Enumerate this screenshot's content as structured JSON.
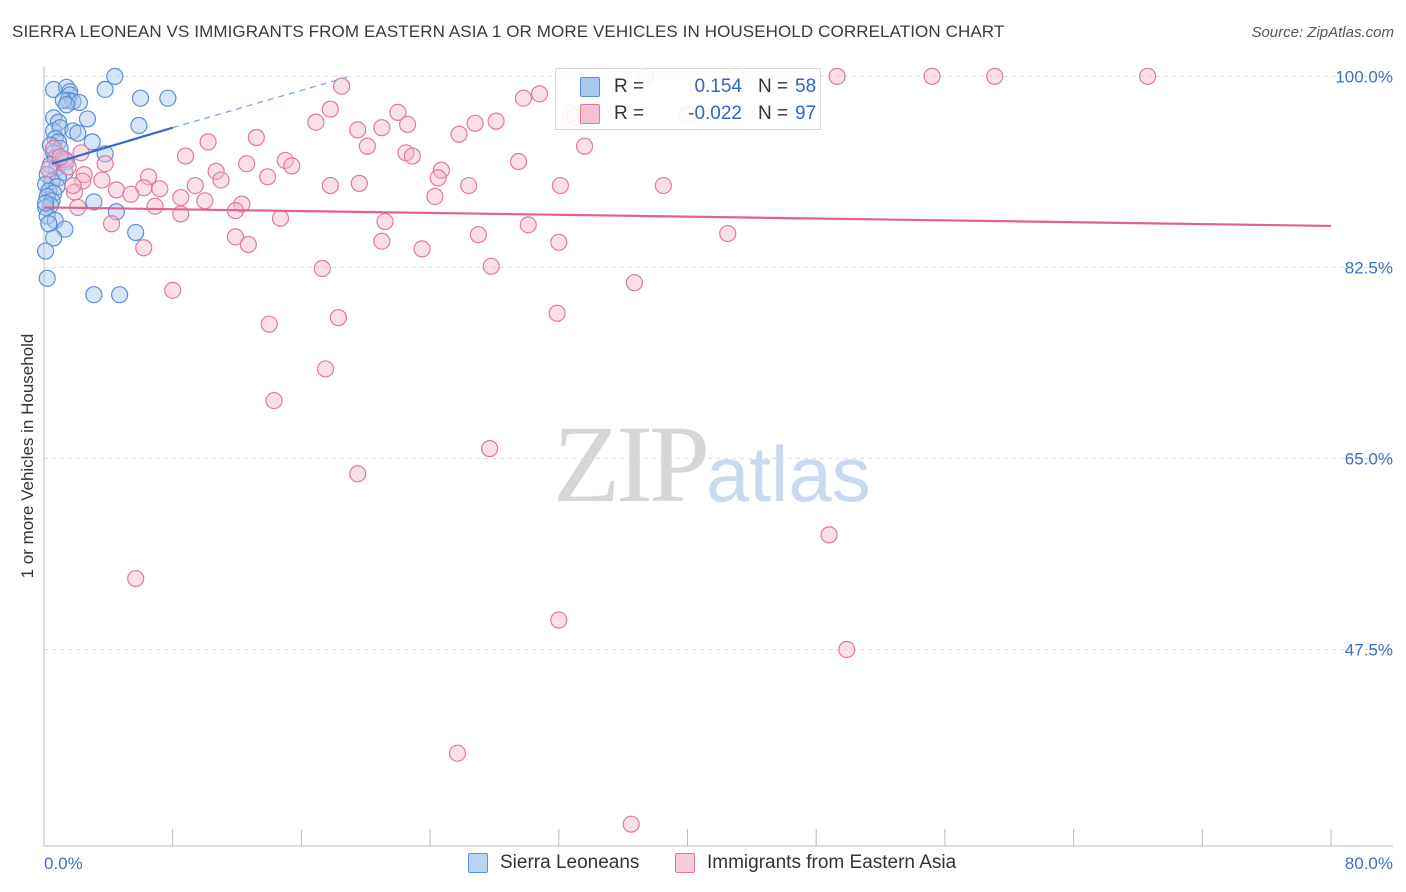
{
  "title": "SIERRA LEONEAN VS IMMIGRANTS FROM EASTERN ASIA 1 OR MORE VEHICLES IN HOUSEHOLD CORRELATION CHART",
  "source": "Source: ZipAtlas.com",
  "watermark": {
    "zip": "ZIP",
    "atlas": "atlas"
  },
  "legend": {
    "r_label": "R =",
    "n_label": "N =",
    "rows": [
      {
        "r": "0.154",
        "n": "58"
      },
      {
        "r": "-0.022",
        "n": "97"
      }
    ]
  },
  "chart_data": {
    "type": "scatter",
    "title": "SIERRA LEONEAN VS IMMIGRANTS FROM EASTERN ASIA 1 OR MORE VEHICLES IN HOUSEHOLD CORRELATION CHART",
    "ylabel": "1 or more Vehicles in Household",
    "xlabel": "",
    "xlim": [
      0,
      80
    ],
    "ylim": [
      29.5,
      101.5
    ],
    "y_ticks": [
      {
        "value": 100,
        "label": "100.0%"
      },
      {
        "value": 82.5,
        "label": "82.5%"
      },
      {
        "value": 65,
        "label": "65.0%"
      },
      {
        "value": 47.5,
        "label": "47.5%"
      }
    ],
    "x_tick_labels": {
      "min": "0.0%",
      "max": "80.0%"
    },
    "x_tick_values": [
      0,
      8,
      16,
      24,
      32,
      40,
      48,
      56,
      64,
      72,
      80
    ],
    "grid": "horizontal dashed",
    "legend_position": "top-center",
    "series": [
      {
        "name": "Sierra Leoneans",
        "color": "#5b8fd6",
        "fill": "#a9c6ee",
        "trend": {
          "x": [
            0.5,
            8.0
          ],
          "y": [
            92.0,
            95.3
          ],
          "dashed_to": [
            19.0,
            100.0
          ]
        },
        "points": [
          [
            4.4,
            100.0
          ],
          [
            0.6,
            98.8
          ],
          [
            1.4,
            99.0
          ],
          [
            1.6,
            98.6
          ],
          [
            3.8,
            98.8
          ],
          [
            1.6,
            98.3
          ],
          [
            1.5,
            97.8
          ],
          [
            1.8,
            97.7
          ],
          [
            7.7,
            98.0
          ],
          [
            1.2,
            97.8
          ],
          [
            6.0,
            98.0
          ],
          [
            2.2,
            97.6
          ],
          [
            1.4,
            97.4
          ],
          [
            0.6,
            96.2
          ],
          [
            0.9,
            95.8
          ],
          [
            2.7,
            96.1
          ],
          [
            5.9,
            95.5
          ],
          [
            0.6,
            95.0
          ],
          [
            1.0,
            95.3
          ],
          [
            1.8,
            95.0
          ],
          [
            2.1,
            94.8
          ],
          [
            0.7,
            94.3
          ],
          [
            0.9,
            94.0
          ],
          [
            3.0,
            94.0
          ],
          [
            0.4,
            93.7
          ],
          [
            1.0,
            93.4
          ],
          [
            0.6,
            93.0
          ],
          [
            3.8,
            92.9
          ],
          [
            0.7,
            92.5
          ],
          [
            1.1,
            92.4
          ],
          [
            1.4,
            92.2
          ],
          [
            0.4,
            91.9
          ],
          [
            0.8,
            91.6
          ],
          [
            1.3,
            91.2
          ],
          [
            0.2,
            91.0
          ],
          [
            0.9,
            90.7
          ],
          [
            0.5,
            90.4
          ],
          [
            0.1,
            90.1
          ],
          [
            0.8,
            89.9
          ],
          [
            0.3,
            89.5
          ],
          [
            0.6,
            89.3
          ],
          [
            0.2,
            89.0
          ],
          [
            0.5,
            88.6
          ],
          [
            3.1,
            88.5
          ],
          [
            0.4,
            88.2
          ],
          [
            0.1,
            88.0
          ],
          [
            4.5,
            87.6
          ],
          [
            0.2,
            87.2
          ],
          [
            0.7,
            86.8
          ],
          [
            0.3,
            86.5
          ],
          [
            1.3,
            86.0
          ],
          [
            5.7,
            85.7
          ],
          [
            0.6,
            85.2
          ],
          [
            0.1,
            84.0
          ],
          [
            0.2,
            81.5
          ],
          [
            3.1,
            80.0
          ],
          [
            4.7,
            80.0
          ],
          [
            0.1,
            88.4
          ]
        ]
      },
      {
        "name": "Immigrants from Eastern Asia",
        "color": "#e07a9c",
        "fill": "#f5b8cb",
        "trend": {
          "x": [
            0.0,
            80.0
          ],
          "y": [
            88.0,
            86.3
          ]
        },
        "points": [
          [
            37.4,
            100.0
          ],
          [
            59.1,
            100.0
          ],
          [
            55.2,
            100.0
          ],
          [
            43.0,
            100.0
          ],
          [
            49.3,
            100.0
          ],
          [
            68.6,
            100.0
          ],
          [
            18.5,
            99.1
          ],
          [
            30.8,
            98.4
          ],
          [
            29.8,
            98.0
          ],
          [
            17.8,
            97.0
          ],
          [
            22.0,
            96.7
          ],
          [
            33.0,
            96.3
          ],
          [
            16.9,
            95.8
          ],
          [
            28.1,
            95.9
          ],
          [
            26.8,
            95.7
          ],
          [
            21.0,
            95.3
          ],
          [
            22.6,
            95.6
          ],
          [
            19.5,
            95.1
          ],
          [
            13.2,
            94.4
          ],
          [
            25.8,
            94.7
          ],
          [
            10.2,
            94.0
          ],
          [
            20.1,
            93.6
          ],
          [
            33.6,
            93.6
          ],
          [
            0.6,
            93.4
          ],
          [
            2.3,
            93.0
          ],
          [
            22.5,
            93.0
          ],
          [
            8.8,
            92.7
          ],
          [
            1.3,
            92.4
          ],
          [
            22.9,
            92.7
          ],
          [
            12.6,
            92.0
          ],
          [
            15.0,
            92.3
          ],
          [
            29.5,
            92.2
          ],
          [
            3.8,
            92.0
          ],
          [
            1.5,
            91.7
          ],
          [
            10.7,
            91.3
          ],
          [
            15.4,
            91.8
          ],
          [
            24.7,
            91.4
          ],
          [
            2.5,
            91.0
          ],
          [
            6.5,
            90.8
          ],
          [
            11.0,
            90.5
          ],
          [
            3.6,
            90.5
          ],
          [
            24.5,
            90.7
          ],
          [
            13.9,
            90.8
          ],
          [
            2.4,
            90.4
          ],
          [
            9.4,
            90.0
          ],
          [
            17.8,
            90.0
          ],
          [
            19.6,
            90.2
          ],
          [
            26.4,
            90.0
          ],
          [
            32.1,
            90.0
          ],
          [
            38.5,
            90.0
          ],
          [
            6.2,
            89.8
          ],
          [
            4.5,
            89.6
          ],
          [
            7.2,
            89.7
          ],
          [
            1.9,
            89.4
          ],
          [
            5.4,
            89.2
          ],
          [
            8.5,
            88.9
          ],
          [
            24.3,
            89.0
          ],
          [
            10.0,
            88.6
          ],
          [
            12.3,
            88.3
          ],
          [
            6.9,
            88.1
          ],
          [
            2.1,
            88.0
          ],
          [
            11.9,
            87.7
          ],
          [
            8.5,
            87.4
          ],
          [
            14.7,
            87.0
          ],
          [
            21.2,
            86.7
          ],
          [
            30.1,
            86.4
          ],
          [
            4.2,
            86.5
          ],
          [
            42.5,
            85.6
          ],
          [
            11.9,
            85.3
          ],
          [
            27.0,
            85.5
          ],
          [
            21.0,
            84.9
          ],
          [
            32.0,
            84.8
          ],
          [
            6.2,
            84.3
          ],
          [
            12.7,
            84.6
          ],
          [
            23.5,
            84.2
          ],
          [
            17.3,
            82.4
          ],
          [
            27.8,
            82.6
          ],
          [
            36.7,
            81.1
          ],
          [
            8.0,
            80.4
          ],
          [
            31.9,
            78.3
          ],
          [
            18.3,
            77.9
          ],
          [
            14.0,
            77.3
          ],
          [
            17.5,
            73.2
          ],
          [
            14.3,
            70.3
          ],
          [
            27.7,
            65.9
          ],
          [
            19.5,
            63.6
          ],
          [
            48.8,
            58.0
          ],
          [
            5.7,
            54.0
          ],
          [
            32.0,
            50.2
          ],
          [
            49.9,
            47.5
          ],
          [
            25.7,
            38.0
          ],
          [
            36.5,
            31.5
          ],
          [
            32.7,
            96.6
          ],
          [
            40.0,
            96.5
          ],
          [
            1.0,
            92.6
          ],
          [
            0.3,
            91.5
          ],
          [
            1.8,
            90.0
          ]
        ]
      }
    ]
  },
  "bottom_legend": [
    "Sierra Leoneans",
    "Immigrants from Eastern Asia"
  ]
}
